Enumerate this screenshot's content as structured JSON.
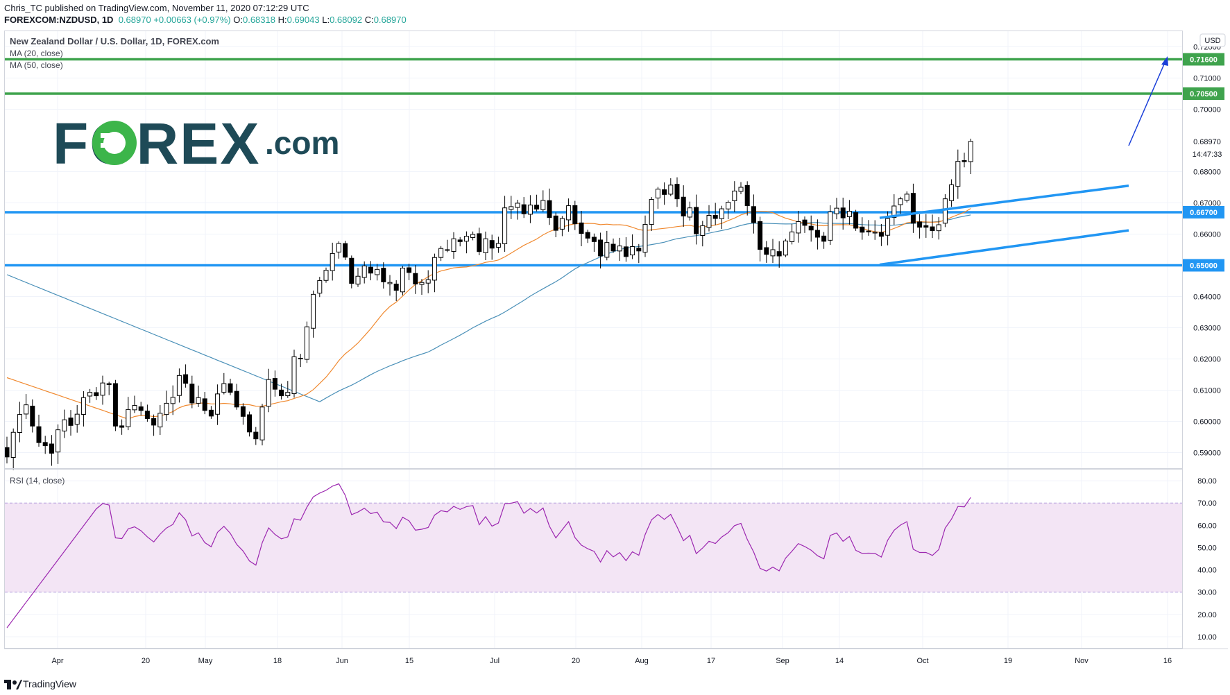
{
  "header": {
    "publisher_line": "Chris_TC published on TradingView.com, November 11, 2020 07:12:29 UTC",
    "symbol": "FOREXCOM:NZDUSD, 1D",
    "last": "0.68970",
    "change": "+0.00663 (+0.97%)",
    "o_label": "O:",
    "o_value": "0.68318",
    "h_label": "H:",
    "h_value": "0.69043",
    "l_label": "L:",
    "l_value": "0.68092",
    "c_label": "C:",
    "c_value": "0.68970"
  },
  "legend": {
    "title": "New Zealand Dollar / U.S. Dollar, 1D, FOREX.com",
    "ma20": "MA (20, close)",
    "ma50": "MA (50, close)",
    "rsi": "RSI (14, close)"
  },
  "currency_badge": "USD",
  "countdown": "14:47:33",
  "logo": {
    "text": "FOREX",
    "suffix": ".com"
  },
  "footer": {
    "brand": "TradingView"
  },
  "colors": {
    "up": "#ffffff",
    "down": "#000000",
    "ma20": "#f0892f",
    "ma50": "#4a90b8",
    "green_line": "#3fa34d",
    "blue_line": "#2196f3",
    "rsi": "#9c27b0",
    "rsi_band": "#f3e5f5",
    "logo": "#1e4a57",
    "logo_accent": "#3cb54a"
  },
  "chart_data": [
    {
      "type": "candlestick",
      "title": "New Zealand Dollar / U.S. Dollar, 1D, FOREX.com",
      "x_tick_labels": [
        "Apr",
        "20",
        "May",
        "18",
        "Jun",
        "15",
        "Jul",
        "20",
        "Aug",
        "17",
        "Sep",
        "14",
        "Oct",
        "19",
        "Nov",
        "16"
      ],
      "y_tick_labels": [
        "0.72000",
        "0.71000",
        "0.70000",
        "0.68000",
        "0.67000",
        "0.66000",
        "0.64000",
        "0.63000",
        "0.62000",
        "0.61000",
        "0.60000",
        "0.59000"
      ],
      "ylim": [
        0.585,
        0.725
      ],
      "horizontal_levels": [
        {
          "label": "0.71600",
          "value": 0.716,
          "color": "green"
        },
        {
          "label": "0.70500",
          "value": 0.705,
          "color": "green"
        },
        {
          "label": "0.66700",
          "value": 0.667,
          "color": "blue"
        },
        {
          "label": "0.65000",
          "value": 0.65,
          "color": "blue"
        }
      ],
      "price_label": "0.68970",
      "close": [
        0.5886,
        0.5965,
        0.6022,
        0.6053,
        0.5985,
        0.5932,
        0.5922,
        0.5898,
        0.5973,
        0.6005,
        0.5987,
        0.6023,
        0.6076,
        0.6093,
        0.6082,
        0.6123,
        0.6118,
        0.5985,
        0.5981,
        0.6038,
        0.6051,
        0.6035,
        0.6009,
        0.5988,
        0.6026,
        0.6058,
        0.6077,
        0.6147,
        0.6122,
        0.6059,
        0.6076,
        0.6035,
        0.6017,
        0.6088,
        0.6121,
        0.6093,
        0.6046,
        0.6016,
        0.5966,
        0.5944,
        0.6046,
        0.6134,
        0.6103,
        0.6082,
        0.6093,
        0.6207,
        0.6201,
        0.6303,
        0.6407,
        0.6451,
        0.6484,
        0.6538,
        0.657,
        0.6526,
        0.6442,
        0.6465,
        0.6498,
        0.6475,
        0.6487,
        0.6447,
        0.6445,
        0.642,
        0.6491,
        0.6477,
        0.644,
        0.6445,
        0.6454,
        0.6525,
        0.6554,
        0.655,
        0.6585,
        0.6576,
        0.6593,
        0.6599,
        0.6544,
        0.6585,
        0.6555,
        0.657,
        0.6684,
        0.6688,
        0.6699,
        0.6665,
        0.6693,
        0.668,
        0.6708,
        0.6653,
        0.6612,
        0.665,
        0.6691,
        0.6633,
        0.6602,
        0.6587,
        0.6576,
        0.653,
        0.6573,
        0.6546,
        0.6562,
        0.6528,
        0.656,
        0.6546,
        0.6631,
        0.6711,
        0.6744,
        0.6727,
        0.6757,
        0.6713,
        0.6658,
        0.6684,
        0.6601,
        0.6627,
        0.666,
        0.665,
        0.6681,
        0.6702,
        0.6738,
        0.675,
        0.6691,
        0.6637,
        0.6551,
        0.6535,
        0.655,
        0.653,
        0.6578,
        0.6607,
        0.664,
        0.6628,
        0.6613,
        0.659,
        0.6577,
        0.6671,
        0.6683,
        0.6652,
        0.6673,
        0.6619,
        0.6606,
        0.6607,
        0.6606,
        0.6593,
        0.665,
        0.669,
        0.6713,
        0.6728,
        0.6635,
        0.6622,
        0.6622,
        0.6611,
        0.663,
        0.6713,
        0.6758,
        0.6833,
        0.6832,
        0.6897
      ]
    },
    {
      "type": "line",
      "title": "RSI (14, close)",
      "y_tick_labels": [
        "80.00",
        "70.00",
        "60.00",
        "50.00",
        "40.00",
        "30.00",
        "20.00",
        "10.00"
      ],
      "ylim": [
        5,
        85
      ],
      "band": [
        30,
        70
      ]
    }
  ]
}
